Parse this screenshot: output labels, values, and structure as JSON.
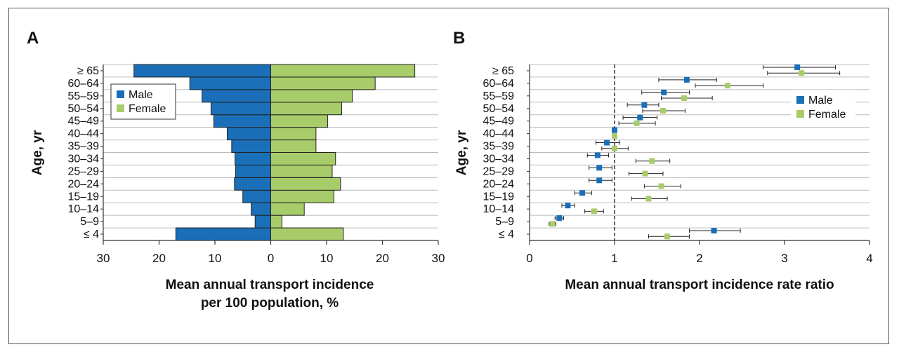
{
  "colors": {
    "male": "#1a6fb8",
    "female": "#a8cc6a",
    "grid": "#bbbbbb",
    "axis": "#333333",
    "errorbar": "#222222"
  },
  "chart_data": [
    {
      "panel": "A",
      "type": "bar",
      "orientation": "horizontal-pyramid",
      "categories": [
        "≤ 4",
        "5–9",
        "10–14",
        "15–19",
        "20–24",
        "25–29",
        "30–34",
        "35–39",
        "40–44",
        "45–49",
        "50–54",
        "55–59",
        "60–64",
        "≥ 65"
      ],
      "series": [
        {
          "name": "Male",
          "values": [
            17,
            2.8,
            3.5,
            5,
            6.5,
            6.3,
            6.4,
            7,
            7.8,
            10.2,
            10.7,
            12.3,
            14.5,
            24.5
          ]
        },
        {
          "name": "Female",
          "values": [
            13,
            2,
            6,
            11.3,
            12.5,
            11,
            11.6,
            8.1,
            8.1,
            10.2,
            12.7,
            14.6,
            18.7,
            25.8
          ]
        }
      ],
      "xticks": [
        "30",
        "20",
        "10",
        "0",
        "10",
        "20",
        "30"
      ],
      "xlim": [
        -30,
        30
      ],
      "xlabel": [
        "Mean annual transport incidence",
        "per 100 population, %"
      ],
      "ylabel": "Age, yr",
      "legend_position": "top-left",
      "grid": true
    },
    {
      "panel": "B",
      "type": "scatter",
      "with_error_bars": true,
      "categories": [
        "≤ 4",
        "5–9",
        "10–14",
        "15–19",
        "20–24",
        "25–29",
        "30–34",
        "35–39",
        "40–44",
        "45–49",
        "50–54",
        "55–59",
        "60–64",
        "≥ 65"
      ],
      "series": [
        {
          "name": "Male",
          "values": [
            2.17,
            0.35,
            0.45,
            0.62,
            0.82,
            0.82,
            0.8,
            0.91,
            1.0,
            1.3,
            1.35,
            1.58,
            1.85,
            3.15
          ],
          "lower": [
            1.88,
            0.3,
            0.38,
            0.53,
            0.7,
            0.7,
            0.68,
            0.78,
            1.0,
            1.1,
            1.15,
            1.32,
            1.52,
            2.75
          ],
          "upper": [
            2.48,
            0.4,
            0.53,
            0.73,
            0.97,
            0.97,
            0.93,
            1.06,
            1.0,
            1.5,
            1.52,
            1.88,
            2.2,
            3.6
          ]
        },
        {
          "name": "Female",
          "values": [
            1.62,
            0.27,
            0.76,
            1.4,
            1.55,
            1.36,
            1.44,
            1.0,
            1.0,
            1.26,
            1.57,
            1.82,
            2.33,
            3.2
          ],
          "lower": [
            1.4,
            0.23,
            0.65,
            1.2,
            1.35,
            1.17,
            1.25,
            0.85,
            1.0,
            1.05,
            1.33,
            1.55,
            1.95,
            2.8
          ],
          "upper": [
            1.88,
            0.31,
            0.87,
            1.62,
            1.78,
            1.57,
            1.65,
            1.16,
            1.0,
            1.48,
            1.83,
            2.15,
            2.75,
            3.65
          ]
        }
      ],
      "xticks": [
        "0",
        "1",
        "2",
        "3",
        "4"
      ],
      "xlim": [
        0,
        4
      ],
      "reference_line": 1,
      "xlabel": "Mean annual transport incidence rate ratio",
      "ylabel": "Age, yr",
      "legend_position": "top-right",
      "grid": true
    }
  ]
}
